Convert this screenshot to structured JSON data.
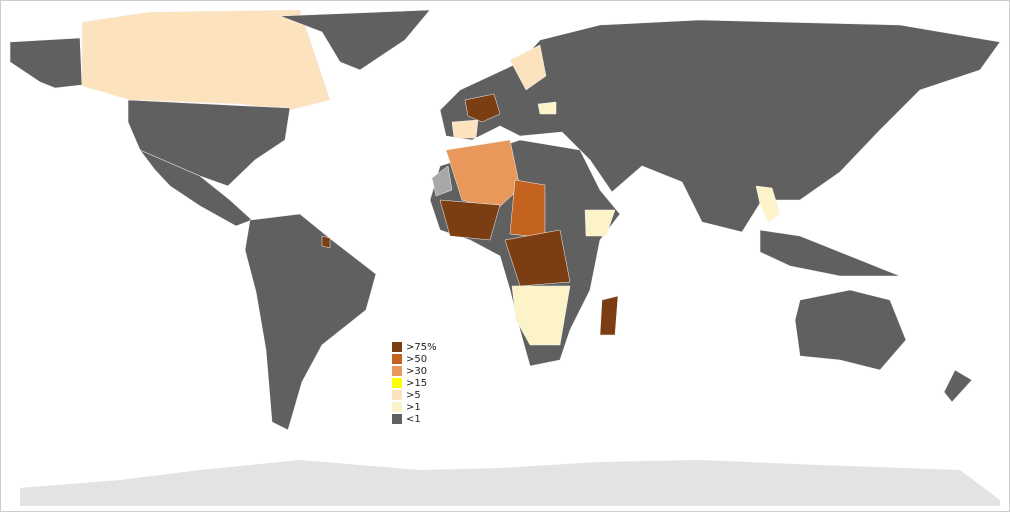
{
  "legend": {
    "items": [
      {
        "label": ">75%",
        "color": "#7b3e12"
      },
      {
        "label": ">50",
        "color": "#c4621f"
      },
      {
        "label": ">30",
        "color": "#e8985a"
      },
      {
        "label": ">15",
        "color": "#ffff00"
      },
      {
        "label": ">5",
        "color": "#fde3bd"
      },
      {
        "label": ">1",
        "color": "#fdf3c8"
      },
      {
        "label": "<1",
        "color": "#606060"
      }
    ]
  }
}
